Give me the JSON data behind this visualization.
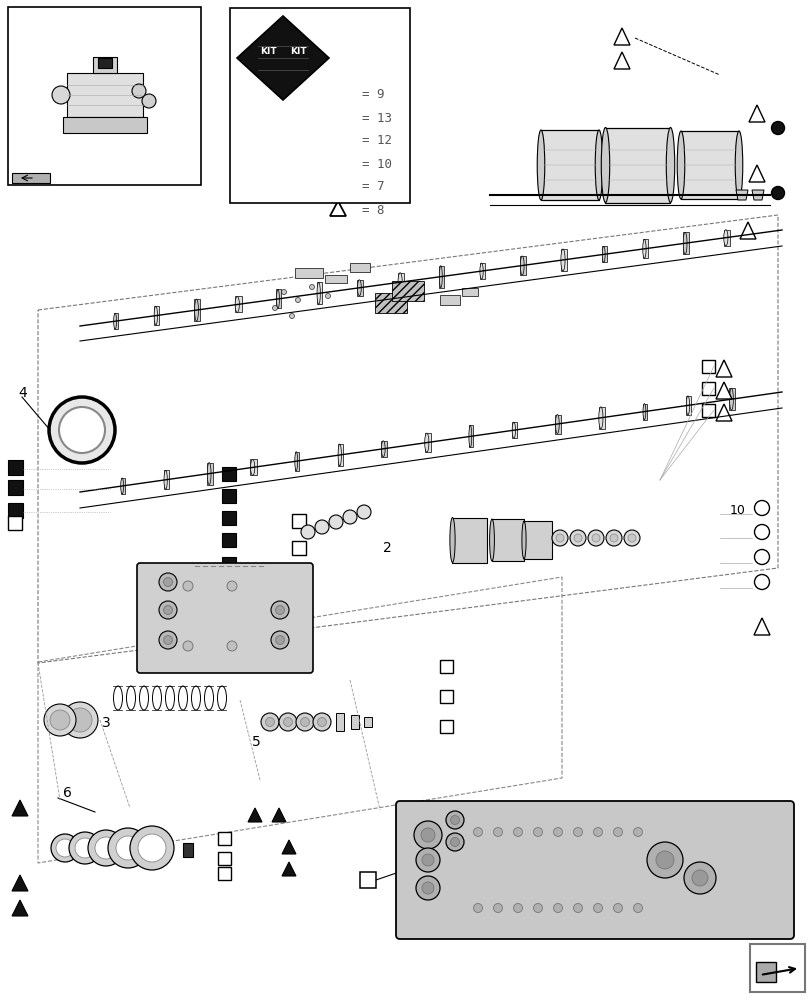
{
  "bg_color": "#ffffff",
  "line_color": "#000000",
  "gray": "#888888",
  "dark": "#222222",
  "light_gray": "#d8d8d8",
  "fig_width": 8.12,
  "fig_height": 10.0
}
